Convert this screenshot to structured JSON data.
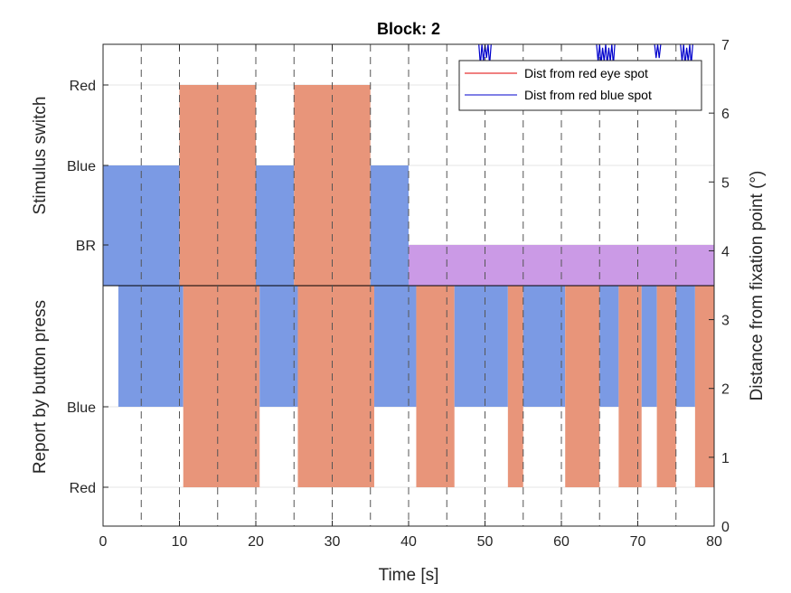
{
  "chart_data": {
    "type": "area",
    "title": "Block: 2",
    "xlabel": "Time [s]",
    "xlim": [
      0,
      80
    ],
    "x_ticks": [
      0,
      10,
      20,
      30,
      40,
      50,
      60,
      70,
      80
    ],
    "vertical_markers": [
      5,
      10,
      15,
      20,
      25,
      30,
      35,
      40,
      45,
      50,
      55,
      60,
      65,
      70,
      75,
      80
    ],
    "grid": true,
    "left_axis": {
      "upper_label": "Stimulus switch",
      "lower_label": "Report by button press",
      "tick_labels": [
        "Red",
        "Blue",
        "BR",
        "Blue",
        "Red"
      ]
    },
    "right_axis": {
      "label": "Distance from fixation point (°)",
      "ylim": [
        0,
        7
      ],
      "ticks": [
        0,
        1,
        2,
        3,
        4,
        5,
        6,
        7
      ]
    },
    "colors": {
      "red_fill": "#E8957A",
      "blue_fill": "#7B9AE4",
      "br_fill": "#CB9AE6",
      "red_line": "#E00000",
      "blue_line": "#0000CC",
      "dashed": "#555555",
      "grid": "#E6E6E6"
    },
    "stimulus_switch": [
      {
        "state": "Blue",
        "start": 0,
        "end": 10
      },
      {
        "state": "Red",
        "start": 10,
        "end": 20
      },
      {
        "state": "Blue",
        "start": 20,
        "end": 25
      },
      {
        "state": "Red",
        "start": 25,
        "end": 35
      },
      {
        "state": "Blue",
        "start": 35,
        "end": 40
      },
      {
        "state": "BR",
        "start": 40,
        "end": 80
      }
    ],
    "button_report": [
      {
        "state": "Blue",
        "start": 2,
        "end": 10.5
      },
      {
        "state": "Red",
        "start": 10.5,
        "end": 20.5
      },
      {
        "state": "Blue",
        "start": 20.5,
        "end": 25.5
      },
      {
        "state": "Red",
        "start": 25.5,
        "end": 35.5
      },
      {
        "state": "Blue",
        "start": 35.5,
        "end": 41
      },
      {
        "state": "Red",
        "start": 41,
        "end": 46
      },
      {
        "state": "Blue",
        "start": 46,
        "end": 53
      },
      {
        "state": "Red",
        "start": 53,
        "end": 55
      },
      {
        "state": "Blue",
        "start": 55,
        "end": 60.5
      },
      {
        "state": "Red",
        "start": 60.5,
        "end": 65
      },
      {
        "state": "Blue",
        "start": 65,
        "end": 67.5
      },
      {
        "state": "Red",
        "start": 67.5,
        "end": 70.5
      },
      {
        "state": "Blue",
        "start": 70.5,
        "end": 72.5
      },
      {
        "state": "Red",
        "start": 72.5,
        "end": 75
      },
      {
        "state": "Blue",
        "start": 75,
        "end": 77.5
      },
      {
        "state": "Red",
        "start": 77.5,
        "end": 80
      }
    ],
    "series": [
      {
        "name": "Dist from red eye spot",
        "color": "#E00000",
        "x": [],
        "y": []
      },
      {
        "name": "Dist from red blue spot",
        "color": "#0000CC",
        "segments": [
          {
            "x": [
              49.2,
              49.4,
              49.6,
              49.8,
              50.0,
              50.2,
              50.4,
              50.6,
              50.8
            ],
            "y": [
              7.0,
              6.7,
              7.0,
              6.75,
              7.0,
              6.8,
              7.0,
              6.7,
              7.0
            ]
          },
          {
            "x": [
              64.6,
              64.8,
              65.0,
              65.2,
              65.4,
              65.6,
              65.8,
              66.0,
              66.2,
              66.4,
              66.6,
              66.8,
              67.0
            ],
            "y": [
              7.0,
              6.75,
              7.0,
              6.7,
              6.95,
              6.75,
              7.0,
              6.7,
              6.95,
              6.75,
              7.0,
              6.7,
              7.0
            ]
          },
          {
            "x": [
              72.2,
              72.4,
              72.6,
              72.8,
              73.0
            ],
            "y": [
              7.0,
              6.8,
              7.0,
              6.8,
              7.0
            ]
          },
          {
            "x": [
              75.6,
              75.8,
              76.0,
              76.2,
              76.4,
              76.6,
              76.8,
              77.0,
              77.2
            ],
            "y": [
              7.0,
              6.75,
              7.0,
              6.7,
              6.95,
              6.75,
              7.0,
              6.7,
              7.0
            ]
          }
        ]
      }
    ],
    "legend_placement": "top-right"
  }
}
